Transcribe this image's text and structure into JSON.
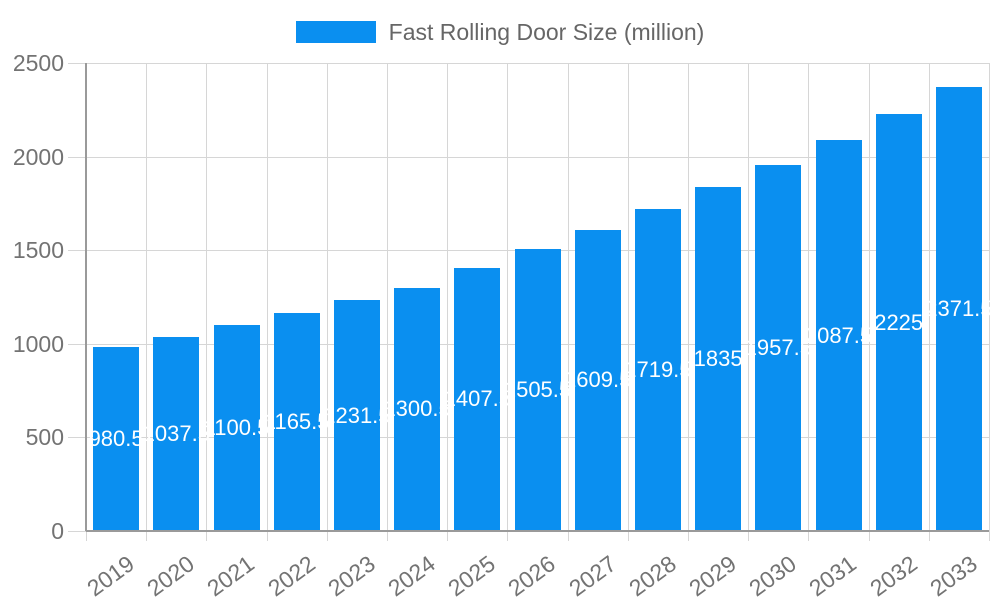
{
  "legend": {
    "label": "Fast Rolling Door Size (million)"
  },
  "chart_data": {
    "type": "bar",
    "title": "",
    "legend_position": "top-center",
    "grid": true,
    "categories": [
      "2019",
      "2020",
      "2021",
      "2022",
      "2023",
      "2024",
      "2025",
      "2026",
      "2027",
      "2028",
      "2029",
      "2030",
      "2031",
      "2032",
      "2033"
    ],
    "series": [
      {
        "name": "Fast Rolling Door Size (million)",
        "values": [
          980.5,
          1037.5,
          1100.5,
          1165.5,
          1231.5,
          1300.5,
          1407.5,
          1505.5,
          1609.5,
          1719.5,
          1835,
          1957.5,
          2087.5,
          2225,
          2371.5
        ]
      }
    ],
    "xlabel": "",
    "ylabel": "",
    "ylim": [
      0,
      2500
    ],
    "yticks": [
      0,
      500,
      1000,
      1500,
      2000,
      2500
    ],
    "x_label_rotation_deg": -36,
    "colors": {
      "bar": "#0a8ff0",
      "bar_label": "#ffffff",
      "tick_label": "#737373",
      "legend_label": "#666666",
      "gridline": "#d6d6d6",
      "axis_line": "#9a9a9a",
      "background": "#ffffff"
    }
  }
}
